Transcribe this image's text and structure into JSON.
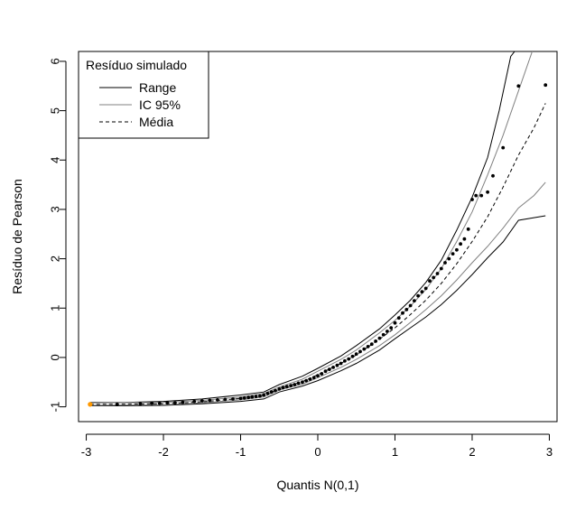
{
  "chart_data": {
    "type": "scatter",
    "xlabel": "Quantis N(0,1)",
    "ylabel": "Resíduo de Pearson",
    "xlim": [
      -3.1,
      3.1
    ],
    "ylim": [
      -1.3,
      6.2
    ],
    "xticks": [
      "-3",
      "-2",
      "-1",
      "0",
      "1",
      "2",
      "3"
    ],
    "yticks": [
      "-1",
      "0",
      "1",
      "2",
      "3",
      "4",
      "5",
      "6"
    ],
    "legend": {
      "title": "Resíduo simulado",
      "position": "top-left",
      "entries": [
        "Range",
        "IC 95%",
        "Média"
      ]
    },
    "colors": {
      "range": "#000000",
      "ic": "#808080",
      "media": "#000000",
      "points": "#000000",
      "highlight": "#ff9900"
    },
    "highlight_point": {
      "x": -2.95,
      "y": -0.95
    },
    "envelopes": {
      "range_upper": [
        [
          -2.95,
          -0.91
        ],
        [
          -2.5,
          -0.91
        ],
        [
          -2.0,
          -0.89
        ],
        [
          -1.5,
          -0.84
        ],
        [
          -1.0,
          -0.76
        ],
        [
          -0.7,
          -0.7
        ],
        [
          -0.5,
          -0.55
        ],
        [
          -0.2,
          -0.38
        ],
        [
          0.0,
          -0.22
        ],
        [
          0.3,
          0.03
        ],
        [
          0.5,
          0.24
        ],
        [
          0.8,
          0.58
        ],
        [
          1.0,
          0.86
        ],
        [
          1.2,
          1.16
        ],
        [
          1.4,
          1.52
        ],
        [
          1.6,
          1.97
        ],
        [
          1.8,
          2.58
        ],
        [
          2.0,
          3.25
        ],
        [
          2.2,
          4.05
        ],
        [
          2.35,
          5.0
        ],
        [
          2.5,
          6.1
        ],
        [
          2.6,
          6.3
        ]
      ],
      "range_lower": [
        [
          -2.95,
          -0.98
        ],
        [
          -2.5,
          -0.98
        ],
        [
          -2.0,
          -0.97
        ],
        [
          -1.5,
          -0.94
        ],
        [
          -1.0,
          -0.89
        ],
        [
          -0.7,
          -0.84
        ],
        [
          -0.5,
          -0.7
        ],
        [
          -0.2,
          -0.58
        ],
        [
          0.0,
          -0.47
        ],
        [
          0.3,
          -0.27
        ],
        [
          0.5,
          -0.12
        ],
        [
          0.8,
          0.15
        ],
        [
          1.0,
          0.38
        ],
        [
          1.2,
          0.6
        ],
        [
          1.4,
          0.82
        ],
        [
          1.6,
          1.07
        ],
        [
          1.8,
          1.36
        ],
        [
          2.0,
          1.68
        ],
        [
          2.2,
          2.02
        ],
        [
          2.4,
          2.34
        ],
        [
          2.6,
          2.78
        ],
        [
          2.95,
          2.87
        ]
      ],
      "ic_upper": [
        [
          -2.95,
          -0.92
        ],
        [
          -2.0,
          -0.91
        ],
        [
          -1.5,
          -0.87
        ],
        [
          -1.0,
          -0.8
        ],
        [
          -0.7,
          -0.73
        ],
        [
          -0.5,
          -0.6
        ],
        [
          -0.2,
          -0.44
        ],
        [
          0.0,
          -0.28
        ],
        [
          0.3,
          -0.04
        ],
        [
          0.5,
          0.15
        ],
        [
          0.8,
          0.5
        ],
        [
          1.0,
          0.75
        ],
        [
          1.2,
          1.04
        ],
        [
          1.4,
          1.38
        ],
        [
          1.6,
          1.8
        ],
        [
          1.8,
          2.35
        ],
        [
          2.0,
          2.95
        ],
        [
          2.2,
          3.7
        ],
        [
          2.4,
          4.5
        ],
        [
          2.6,
          5.4
        ],
        [
          2.8,
          6.3
        ]
      ],
      "ic_lower": [
        [
          -2.95,
          -0.97
        ],
        [
          -2.0,
          -0.96
        ],
        [
          -1.5,
          -0.92
        ],
        [
          -1.0,
          -0.86
        ],
        [
          -0.7,
          -0.8
        ],
        [
          -0.5,
          -0.66
        ],
        [
          -0.2,
          -0.54
        ],
        [
          0.0,
          -0.41
        ],
        [
          0.3,
          -0.2
        ],
        [
          0.5,
          -0.04
        ],
        [
          0.8,
          0.24
        ],
        [
          1.0,
          0.46
        ],
        [
          1.2,
          0.71
        ],
        [
          1.4,
          0.97
        ],
        [
          1.6,
          1.25
        ],
        [
          1.8,
          1.57
        ],
        [
          2.0,
          1.92
        ],
        [
          2.2,
          2.25
        ],
        [
          2.4,
          2.62
        ],
        [
          2.6,
          3.03
        ],
        [
          2.8,
          3.28
        ],
        [
          2.95,
          3.55
        ]
      ],
      "media": [
        [
          -2.95,
          -0.95
        ],
        [
          -2.0,
          -0.94
        ],
        [
          -1.5,
          -0.9
        ],
        [
          -1.0,
          -0.83
        ],
        [
          -0.7,
          -0.77
        ],
        [
          -0.5,
          -0.63
        ],
        [
          -0.2,
          -0.49
        ],
        [
          0.0,
          -0.35
        ],
        [
          0.3,
          -0.12
        ],
        [
          0.5,
          0.05
        ],
        [
          0.8,
          0.37
        ],
        [
          1.0,
          0.6
        ],
        [
          1.2,
          0.87
        ],
        [
          1.4,
          1.16
        ],
        [
          1.6,
          1.5
        ],
        [
          1.8,
          1.9
        ],
        [
          2.0,
          2.35
        ],
        [
          2.2,
          2.85
        ],
        [
          2.4,
          3.45
        ],
        [
          2.6,
          4.1
        ],
        [
          2.8,
          4.65
        ],
        [
          2.95,
          5.15
        ]
      ]
    },
    "residual_quantiles": [
      [
        -2.95,
        -0.95
      ],
      [
        -2.6,
        -0.95
      ],
      [
        -2.3,
        -0.94
      ],
      [
        -2.15,
        -0.93
      ],
      [
        -2.05,
        -0.93
      ],
      [
        -1.95,
        -0.92
      ],
      [
        -1.85,
        -0.92
      ],
      [
        -1.75,
        -0.91
      ],
      [
        -1.6,
        -0.89
      ],
      [
        -1.5,
        -0.88
      ],
      [
        -1.4,
        -0.87
      ],
      [
        -1.3,
        -0.86
      ],
      [
        -1.2,
        -0.85
      ],
      [
        -1.1,
        -0.84
      ],
      [
        -1.0,
        -0.83
      ],
      [
        -0.95,
        -0.82
      ],
      [
        -0.9,
        -0.81
      ],
      [
        -0.85,
        -0.8
      ],
      [
        -0.8,
        -0.79
      ],
      [
        -0.75,
        -0.78
      ],
      [
        -0.7,
        -0.76
      ],
      [
        -0.65,
        -0.73
      ],
      [
        -0.6,
        -0.7
      ],
      [
        -0.55,
        -0.67
      ],
      [
        -0.5,
        -0.64
      ],
      [
        -0.45,
        -0.61
      ],
      [
        -0.4,
        -0.59
      ],
      [
        -0.35,
        -0.57
      ],
      [
        -0.3,
        -0.55
      ],
      [
        -0.25,
        -0.52
      ],
      [
        -0.2,
        -0.5
      ],
      [
        -0.15,
        -0.47
      ],
      [
        -0.1,
        -0.44
      ],
      [
        -0.05,
        -0.41
      ],
      [
        0.0,
        -0.37
      ],
      [
        0.05,
        -0.33
      ],
      [
        0.1,
        -0.28
      ],
      [
        0.15,
        -0.24
      ],
      [
        0.2,
        -0.2
      ],
      [
        0.25,
        -0.16
      ],
      [
        0.3,
        -0.12
      ],
      [
        0.35,
        -0.07
      ],
      [
        0.4,
        -0.03
      ],
      [
        0.45,
        0.02
      ],
      [
        0.5,
        0.07
      ],
      [
        0.55,
        0.12
      ],
      [
        0.6,
        0.17
      ],
      [
        0.65,
        0.22
      ],
      [
        0.7,
        0.27
      ],
      [
        0.75,
        0.33
      ],
      [
        0.8,
        0.39
      ],
      [
        0.85,
        0.46
      ],
      [
        0.9,
        0.53
      ],
      [
        0.95,
        0.6
      ],
      [
        1.0,
        0.7
      ],
      [
        1.05,
        0.8
      ],
      [
        1.1,
        0.9
      ],
      [
        1.15,
        0.97
      ],
      [
        1.2,
        1.05
      ],
      [
        1.25,
        1.15
      ],
      [
        1.3,
        1.25
      ],
      [
        1.35,
        1.33
      ],
      [
        1.4,
        1.4
      ],
      [
        1.45,
        1.55
      ],
      [
        1.5,
        1.62
      ],
      [
        1.55,
        1.7
      ],
      [
        1.6,
        1.8
      ],
      [
        1.65,
        1.92
      ],
      [
        1.7,
        2.0
      ],
      [
        1.75,
        2.1
      ],
      [
        1.8,
        2.18
      ],
      [
        1.85,
        2.3
      ],
      [
        1.9,
        2.4
      ],
      [
        1.95,
        2.6
      ],
      [
        2.0,
        3.2
      ],
      [
        2.05,
        3.28
      ],
      [
        2.12,
        3.28
      ],
      [
        2.2,
        3.35
      ],
      [
        2.27,
        3.68
      ],
      [
        2.4,
        4.25
      ],
      [
        2.6,
        5.5
      ],
      [
        2.95,
        5.52
      ]
    ]
  }
}
